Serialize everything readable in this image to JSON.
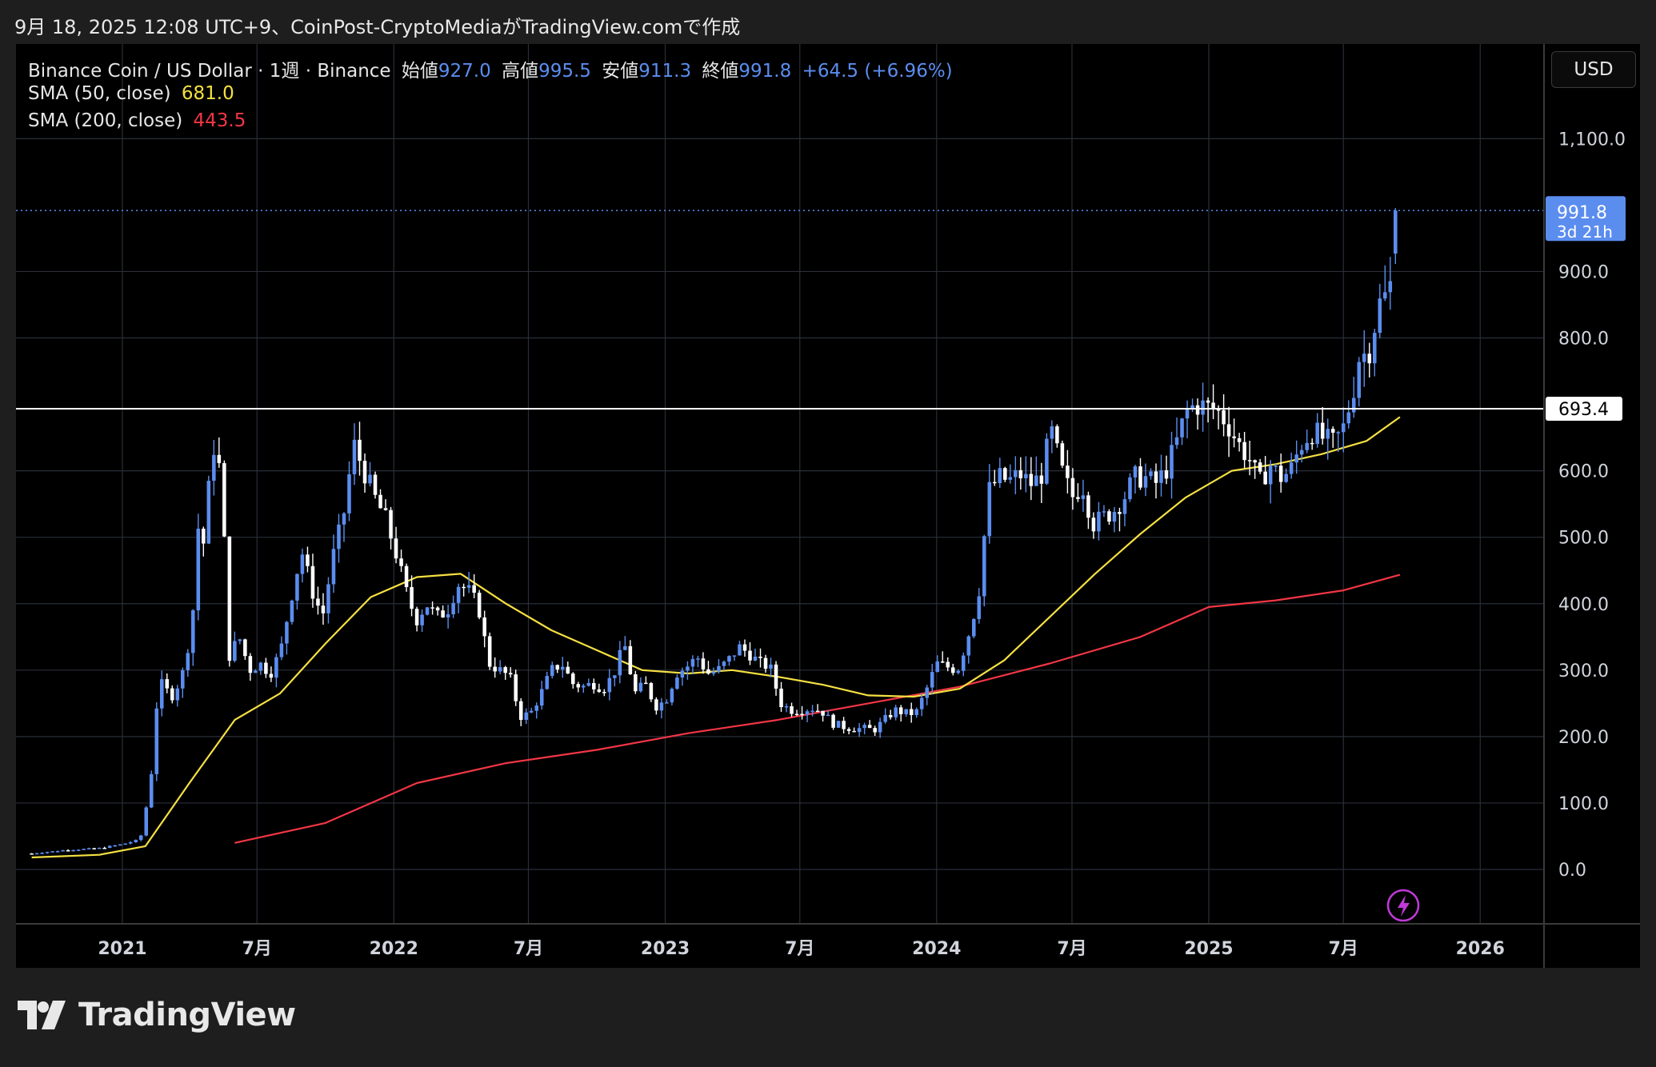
{
  "caption": "9月 18, 2025 12:08 UTC+9、CoinPost-CryptoMediaがTradingView.comで作成",
  "legend": {
    "symbol": "Binance Coin / US Dollar · 1週 · Binance",
    "open_label": "始値",
    "open_value": "927.0",
    "high_label": "高値",
    "high_value": "995.5",
    "low_label": "安値",
    "low_value": "911.3",
    "close_label": "終値",
    "close_value": "991.8",
    "change": "+64.5 (+6.96%)",
    "sma50_label": "SMA (50, close)",
    "sma50_value": "681.0",
    "sma200_label": "SMA (200, close)",
    "sma200_value": "443.5"
  },
  "currency_button": "USD",
  "brand": "TradingView",
  "price_labels": {
    "last_price": "991.8",
    "countdown": "3d 21h",
    "level": "693.4"
  },
  "colors": {
    "background": "#000000",
    "candle_up": "#5b8def",
    "candle_down": "#ffffff",
    "sma50": "#f5e042",
    "sma200": "#f23645",
    "grid": "#2a2e39",
    "accent": "#5b8def"
  },
  "chart_data": {
    "type": "candlestick",
    "ylim": [
      -80,
      1200
    ],
    "y_ticks": [
      "1,100.0",
      "900.0",
      "800.0",
      "600.0",
      "500.0",
      "400.0",
      "300.0",
      "200.0",
      "100.0",
      "0.0"
    ],
    "y_tick_values": [
      1100,
      900,
      800,
      600,
      500,
      400,
      300,
      200,
      100,
      0
    ],
    "x_labels": [
      "2021",
      "7月",
      "2022",
      "7月",
      "2023",
      "7月",
      "2024",
      "7月",
      "2025",
      "7月",
      "2026"
    ],
    "x_label_dates": [
      "2021-01-01",
      "2021-07-01",
      "2022-01-01",
      "2022-07-01",
      "2023-01-01",
      "2023-07-01",
      "2024-01-01",
      "2024-07-01",
      "2025-01-01",
      "2025-07-01",
      "2026-01-01"
    ],
    "horizontal_level": 693.4,
    "last_price": 991.8,
    "close_path": [
      [
        "2020-09-01",
        24
      ],
      [
        "2020-10-15",
        29
      ],
      [
        "2020-12-01",
        32
      ],
      [
        "2021-01-01",
        38
      ],
      [
        "2021-01-25",
        45
      ],
      [
        "2021-02-08",
        130
      ],
      [
        "2021-02-15",
        240
      ],
      [
        "2021-02-22",
        280
      ],
      [
        "2021-03-08",
        260
      ],
      [
        "2021-03-22",
        290
      ],
      [
        "2021-04-05",
        370
      ],
      [
        "2021-04-12",
        520
      ],
      [
        "2021-04-19",
        480
      ],
      [
        "2021-05-03",
        640
      ],
      [
        "2021-05-10",
        620
      ],
      [
        "2021-05-17",
        520
      ],
      [
        "2021-05-24",
        320
      ],
      [
        "2021-06-07",
        350
      ],
      [
        "2021-06-21",
        300
      ],
      [
        "2021-07-05",
        310
      ],
      [
        "2021-07-19",
        295
      ],
      [
        "2021-08-02",
        330
      ],
      [
        "2021-08-16",
        410
      ],
      [
        "2021-08-30",
        480
      ],
      [
        "2021-09-13",
        420
      ],
      [
        "2021-09-27",
        380
      ],
      [
        "2021-10-11",
        470
      ],
      [
        "2021-10-25",
        530
      ],
      [
        "2021-11-08",
        640
      ],
      [
        "2021-11-22",
        600
      ],
      [
        "2021-12-06",
        560
      ],
      [
        "2021-12-20",
        530
      ],
      [
        "2022-01-03",
        480
      ],
      [
        "2022-01-17",
        420
      ],
      [
        "2022-01-31",
        375
      ],
      [
        "2022-02-14",
        400
      ],
      [
        "2022-02-28",
        380
      ],
      [
        "2022-03-14",
        390
      ],
      [
        "2022-03-28",
        430
      ],
      [
        "2022-04-11",
        420
      ],
      [
        "2022-04-25",
        395
      ],
      [
        "2022-05-09",
        310
      ],
      [
        "2022-05-23",
        300
      ],
      [
        "2022-06-06",
        290
      ],
      [
        "2022-06-20",
        230
      ],
      [
        "2022-07-04",
        235
      ],
      [
        "2022-07-18",
        265
      ],
      [
        "2022-08-01",
        300
      ],
      [
        "2022-08-15",
        310
      ],
      [
        "2022-08-29",
        280
      ],
      [
        "2022-09-12",
        275
      ],
      [
        "2022-09-26",
        280
      ],
      [
        "2022-10-10",
        272
      ],
      [
        "2022-10-24",
        295
      ],
      [
        "2022-11-07",
        340
      ],
      [
        "2022-11-21",
        265
      ],
      [
        "2022-12-05",
        280
      ],
      [
        "2022-12-19",
        245
      ],
      [
        "2023-01-02",
        255
      ],
      [
        "2023-01-16",
        295
      ],
      [
        "2023-01-30",
        305
      ],
      [
        "2023-02-13",
        320
      ],
      [
        "2023-02-27",
        295
      ],
      [
        "2023-03-13",
        300
      ],
      [
        "2023-03-27",
        315
      ],
      [
        "2023-04-10",
        335
      ],
      [
        "2023-04-24",
        325
      ],
      [
        "2023-05-08",
        310
      ],
      [
        "2023-05-22",
        305
      ],
      [
        "2023-06-05",
        250
      ],
      [
        "2023-06-19",
        240
      ],
      [
        "2023-07-03",
        240
      ],
      [
        "2023-07-17",
        243
      ],
      [
        "2023-07-31",
        238
      ],
      [
        "2023-08-14",
        220
      ],
      [
        "2023-08-28",
        215
      ],
      [
        "2023-09-11",
        212
      ],
      [
        "2023-09-25",
        212
      ],
      [
        "2023-10-09",
        210
      ],
      [
        "2023-10-23",
        225
      ],
      [
        "2023-11-06",
        240
      ],
      [
        "2023-11-20",
        235
      ],
      [
        "2023-12-04",
        235
      ],
      [
        "2023-12-18",
        270
      ],
      [
        "2024-01-01",
        310
      ],
      [
        "2024-01-15",
        305
      ],
      [
        "2024-01-29",
        300
      ],
      [
        "2024-02-12",
        350
      ],
      [
        "2024-02-26",
        410
      ],
      [
        "2024-03-11",
        570
      ],
      [
        "2024-03-25",
        590
      ],
      [
        "2024-04-08",
        585
      ],
      [
        "2024-04-22",
        595
      ],
      [
        "2024-05-06",
        580
      ],
      [
        "2024-05-20",
        590
      ],
      [
        "2024-06-03",
        660
      ],
      [
        "2024-06-17",
        600
      ],
      [
        "2024-07-01",
        560
      ],
      [
        "2024-07-15",
        580
      ],
      [
        "2024-07-29",
        520
      ],
      [
        "2024-08-12",
        530
      ],
      [
        "2024-08-26",
        540
      ],
      [
        "2024-09-09",
        560
      ],
      [
        "2024-09-23",
        590
      ],
      [
        "2024-10-07",
        590
      ],
      [
        "2024-10-21",
        580
      ],
      [
        "2024-11-04",
        600
      ],
      [
        "2024-11-18",
        640
      ],
      [
        "2024-12-02",
        690
      ],
      [
        "2024-12-16",
        700
      ],
      [
        "2024-12-30",
        695
      ],
      [
        "2025-01-13",
        690
      ],
      [
        "2025-01-27",
        670
      ],
      [
        "2025-02-10",
        640
      ],
      [
        "2025-02-24",
        620
      ],
      [
        "2025-03-10",
        580
      ],
      [
        "2025-03-24",
        610
      ],
      [
        "2025-04-07",
        590
      ],
      [
        "2025-04-21",
        600
      ],
      [
        "2025-05-05",
        640
      ],
      [
        "2025-05-19",
        660
      ],
      [
        "2025-06-02",
        650
      ],
      [
        "2025-06-16",
        640
      ],
      [
        "2025-06-30",
        660
      ],
      [
        "2025-07-14",
        720
      ],
      [
        "2025-07-21",
        770
      ],
      [
        "2025-08-04",
        780
      ],
      [
        "2025-08-18",
        850
      ],
      [
        "2025-09-01",
        870
      ],
      [
        "2025-09-15",
        991.8
      ]
    ],
    "sma50_path": [
      [
        "2020-09-01",
        18
      ],
      [
        "2020-12-01",
        22
      ],
      [
        "2021-02-01",
        35
      ],
      [
        "2021-04-01",
        130
      ],
      [
        "2021-06-01",
        225
      ],
      [
        "2021-08-01",
        265
      ],
      [
        "2021-10-01",
        340
      ],
      [
        "2021-12-01",
        410
      ],
      [
        "2022-02-01",
        440
      ],
      [
        "2022-04-01",
        445
      ],
      [
        "2022-06-01",
        400
      ],
      [
        "2022-08-01",
        360
      ],
      [
        "2022-10-01",
        330
      ],
      [
        "2022-12-01",
        300
      ],
      [
        "2023-02-01",
        295
      ],
      [
        "2023-04-01",
        300
      ],
      [
        "2023-06-01",
        290
      ],
      [
        "2023-08-01",
        278
      ],
      [
        "2023-10-01",
        262
      ],
      [
        "2023-12-01",
        260
      ],
      [
        "2024-02-01",
        272
      ],
      [
        "2024-04-01",
        315
      ],
      [
        "2024-06-01",
        380
      ],
      [
        "2024-08-01",
        445
      ],
      [
        "2024-10-01",
        505
      ],
      [
        "2024-12-01",
        560
      ],
      [
        "2025-02-01",
        600
      ],
      [
        "2025-04-01",
        610
      ],
      [
        "2025-06-01",
        625
      ],
      [
        "2025-08-01",
        645
      ],
      [
        "2025-09-15",
        681
      ]
    ],
    "sma200_path": [
      [
        "2021-06-01",
        40
      ],
      [
        "2021-10-01",
        70
      ],
      [
        "2022-02-01",
        130
      ],
      [
        "2022-06-01",
        160
      ],
      [
        "2022-10-01",
        180
      ],
      [
        "2023-02-01",
        205
      ],
      [
        "2023-06-01",
        225
      ],
      [
        "2023-10-01",
        250
      ],
      [
        "2024-02-01",
        275
      ],
      [
        "2024-06-01",
        310
      ],
      [
        "2024-10-01",
        350
      ],
      [
        "2025-01-01",
        395
      ],
      [
        "2025-04-01",
        405
      ],
      [
        "2025-07-01",
        420
      ],
      [
        "2025-09-15",
        443.5
      ]
    ]
  }
}
